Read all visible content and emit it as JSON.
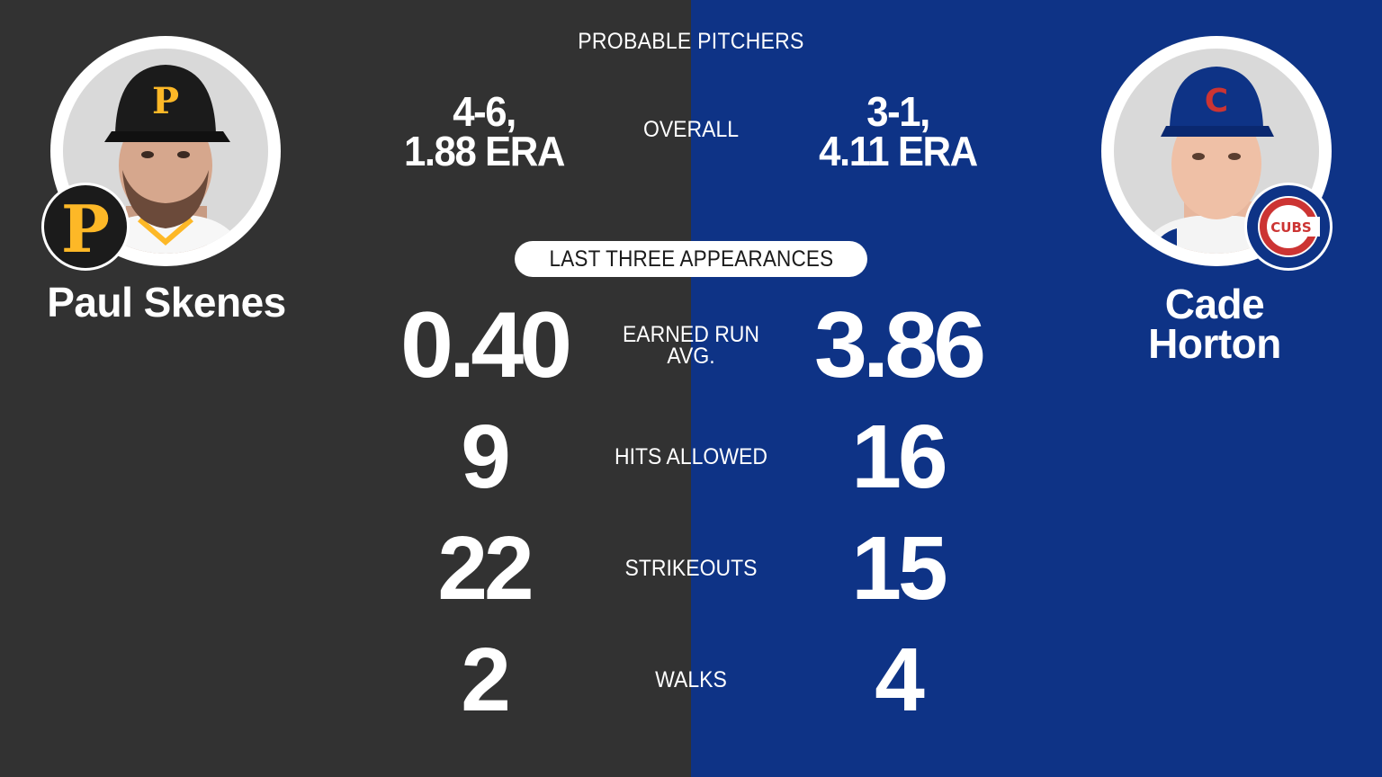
{
  "header": {
    "title": "PROBABLE PITCHERS"
  },
  "colors": {
    "left_bg": "#323232",
    "right_bg": "#0e3386",
    "pirates_gold": "#fdb827",
    "cubs_red": "#cc3433",
    "cubs_blue": "#0e3386"
  },
  "overall": {
    "label": "OVERALL",
    "left": {
      "record": "4-6,",
      "era": "1.88 ERA"
    },
    "right": {
      "record": "3-1,",
      "era": "4.11 ERA"
    }
  },
  "section": {
    "label": "LAST THREE APPEARANCES"
  },
  "stats": [
    {
      "label_line1": "EARNED RUN",
      "label_line2": "AVG.",
      "left": "0.40",
      "right": "3.86"
    },
    {
      "label_line1": "HITS ALLOWED",
      "left": "9",
      "right": "16"
    },
    {
      "label_line1": "STRIKEOUTS",
      "left": "22",
      "right": "15"
    },
    {
      "label_line1": "WALKS",
      "left": "2",
      "right": "4"
    }
  ],
  "players": {
    "left": {
      "name": "Paul Skenes",
      "team_logo": "pirates-p-logo-icon",
      "cap_letter": "P"
    },
    "right": {
      "name_line1": "Cade",
      "name_line2": "Horton",
      "team_logo": "cubs-logo-icon",
      "cap_letter": "C",
      "logo_text": "CUBS"
    }
  }
}
